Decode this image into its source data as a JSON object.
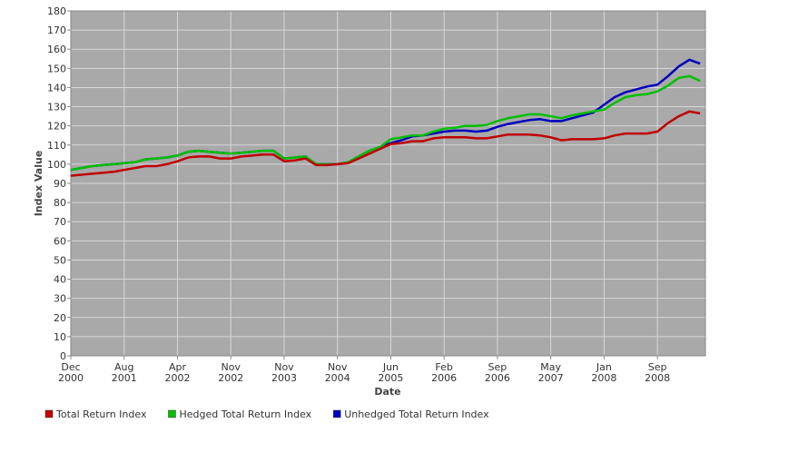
{
  "chart_data": {
    "type": "line",
    "x_label": "Date",
    "y_label": "Index Value",
    "x": [
      0,
      2,
      4,
      6,
      8,
      10,
      12,
      14,
      16,
      18,
      20,
      22,
      24,
      26,
      28,
      30,
      32,
      34,
      36,
      38,
      40,
      42,
      44,
      46,
      48,
      50,
      52,
      54,
      56,
      58,
      60,
      62,
      64,
      66,
      68,
      70,
      72,
      74,
      76,
      78,
      80,
      82,
      84,
      86,
      88,
      90,
      92,
      94,
      96,
      98,
      100,
      102,
      104,
      106,
      108,
      110,
      112,
      114,
      116,
      118
    ],
    "xlim": [
      0,
      119
    ],
    "xticks": [
      {
        "value": 0,
        "label": "Dec\n2000"
      },
      {
        "value": 10,
        "label": "Aug\n2001"
      },
      {
        "value": 20,
        "label": "Apr\n2002"
      },
      {
        "value": 30,
        "label": "Nov\n2002"
      },
      {
        "value": 40,
        "label": "Nov\n2003"
      },
      {
        "value": 50,
        "label": "Nov\n2004"
      },
      {
        "value": 60,
        "label": "Jun\n2005"
      },
      {
        "value": 70,
        "label": "Feb\n2006"
      },
      {
        "value": 80,
        "label": "Sep\n2006"
      },
      {
        "value": 90,
        "label": "May\n2007"
      },
      {
        "value": 100,
        "label": "Jan\n2008"
      },
      {
        "value": 110,
        "label": "Sep\n2008"
      }
    ],
    "ylim": [
      0,
      180
    ],
    "yticks": [
      0,
      10,
      20,
      30,
      40,
      50,
      60,
      70,
      80,
      90,
      100,
      110,
      120,
      130,
      140,
      150,
      160,
      170,
      180
    ],
    "grid": true,
    "legend": "bottom-left",
    "series": [
      {
        "name": "Total Return Index",
        "color": "#c00000",
        "values": [
          94,
          94.5,
          95,
          95.5,
          96,
          97,
          98,
          99,
          99,
          100,
          101.5,
          103.5,
          104,
          104,
          103,
          103,
          104,
          104.5,
          105,
          105,
          101.5,
          102,
          103,
          99.5,
          99.5,
          100,
          100.5,
          103,
          105.5,
          108,
          110.5,
          111,
          112,
          112,
          113.5,
          114,
          114,
          114,
          113.5,
          113.5,
          114.5,
          115.5,
          115.5,
          115.5,
          115,
          114,
          112.5,
          113,
          113,
          113,
          113.5,
          115,
          116,
          116,
          116,
          117,
          121.5,
          125,
          127.5,
          126.5
        ]
      },
      {
        "name": "Hedged Total Return Index",
        "color": "#00c000",
        "values": [
          97,
          98,
          99,
          99.5,
          100,
          100.5,
          101,
          102.5,
          103,
          103.5,
          104.5,
          106.5,
          107,
          106.5,
          106,
          105.5,
          106,
          106.5,
          107,
          107,
          103,
          103.5,
          104,
          100,
          100,
          100,
          101,
          104,
          107,
          109,
          113,
          114,
          115,
          115,
          117,
          118.5,
          119,
          120,
          120,
          120.5,
          122.5,
          124,
          125,
          126,
          126,
          125,
          124,
          125.5,
          126.5,
          127.5,
          128.5,
          132,
          135,
          136,
          136.5,
          138,
          141,
          145,
          146,
          143.5
        ]
      },
      {
        "name": "Unhedged Total Return Index",
        "color": "#0000c0",
        "values": [
          97,
          98,
          99,
          99.5,
          100,
          100.5,
          101,
          102.5,
          103,
          103.5,
          104.5,
          106.5,
          107,
          106.5,
          106,
          105.5,
          106,
          106.5,
          107,
          107,
          103,
          103.5,
          104,
          100,
          100,
          100,
          101,
          104,
          107,
          109,
          111,
          112.5,
          114.5,
          115,
          116,
          117,
          117.5,
          117.5,
          117,
          117.5,
          119.5,
          121,
          122,
          123,
          123.5,
          122.5,
          122.5,
          124,
          125.5,
          127,
          131,
          135,
          137.5,
          139,
          140.5,
          141.5,
          146,
          151,
          154.5,
          152.5
        ]
      }
    ]
  }
}
